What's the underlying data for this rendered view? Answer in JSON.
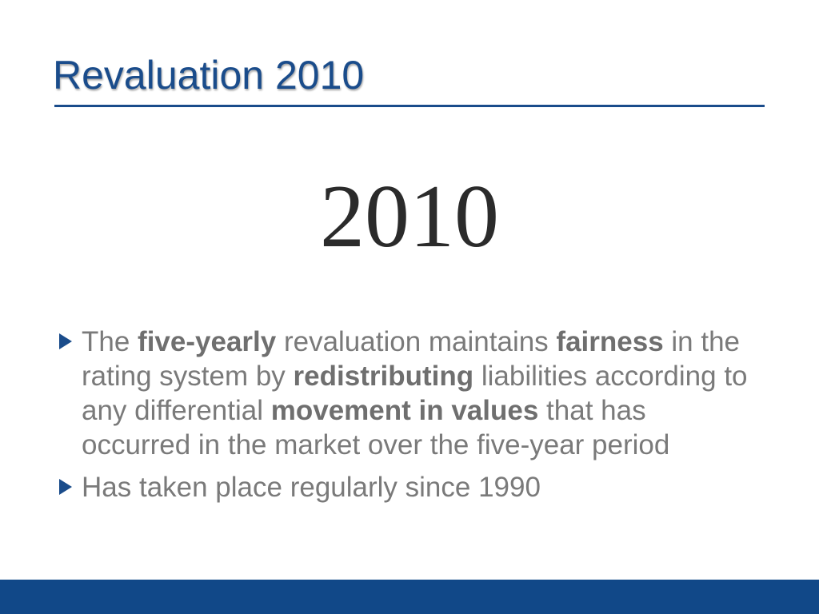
{
  "slide": {
    "title": "Revaluation 2010",
    "big_year": "2010",
    "bullets": [
      {
        "segments": [
          {
            "text": "The ",
            "bold": false
          },
          {
            "text": "five-yearly",
            "bold": true
          },
          {
            "text": " revaluation maintains ",
            "bold": false
          },
          {
            "text": "fairness",
            "bold": true
          },
          {
            "text": " in the rating system by ",
            "bold": false
          },
          {
            "text": "redistributing",
            "bold": true
          },
          {
            "text": " liabilities according to any differential ",
            "bold": false
          },
          {
            "text": "movement in values",
            "bold": true
          },
          {
            "text": " that has occurred in the market over the five-year period",
            "bold": false
          }
        ]
      },
      {
        "segments": [
          {
            "text": "Has taken place regularly since 1990",
            "bold": false
          }
        ]
      }
    ]
  },
  "colors": {
    "accent": "#1a4c8b",
    "footer": "#114888",
    "body_text": "#7a7a7a",
    "year_text": "#2b2b2b"
  },
  "icons": {
    "bullet": "triangle-right-icon"
  }
}
